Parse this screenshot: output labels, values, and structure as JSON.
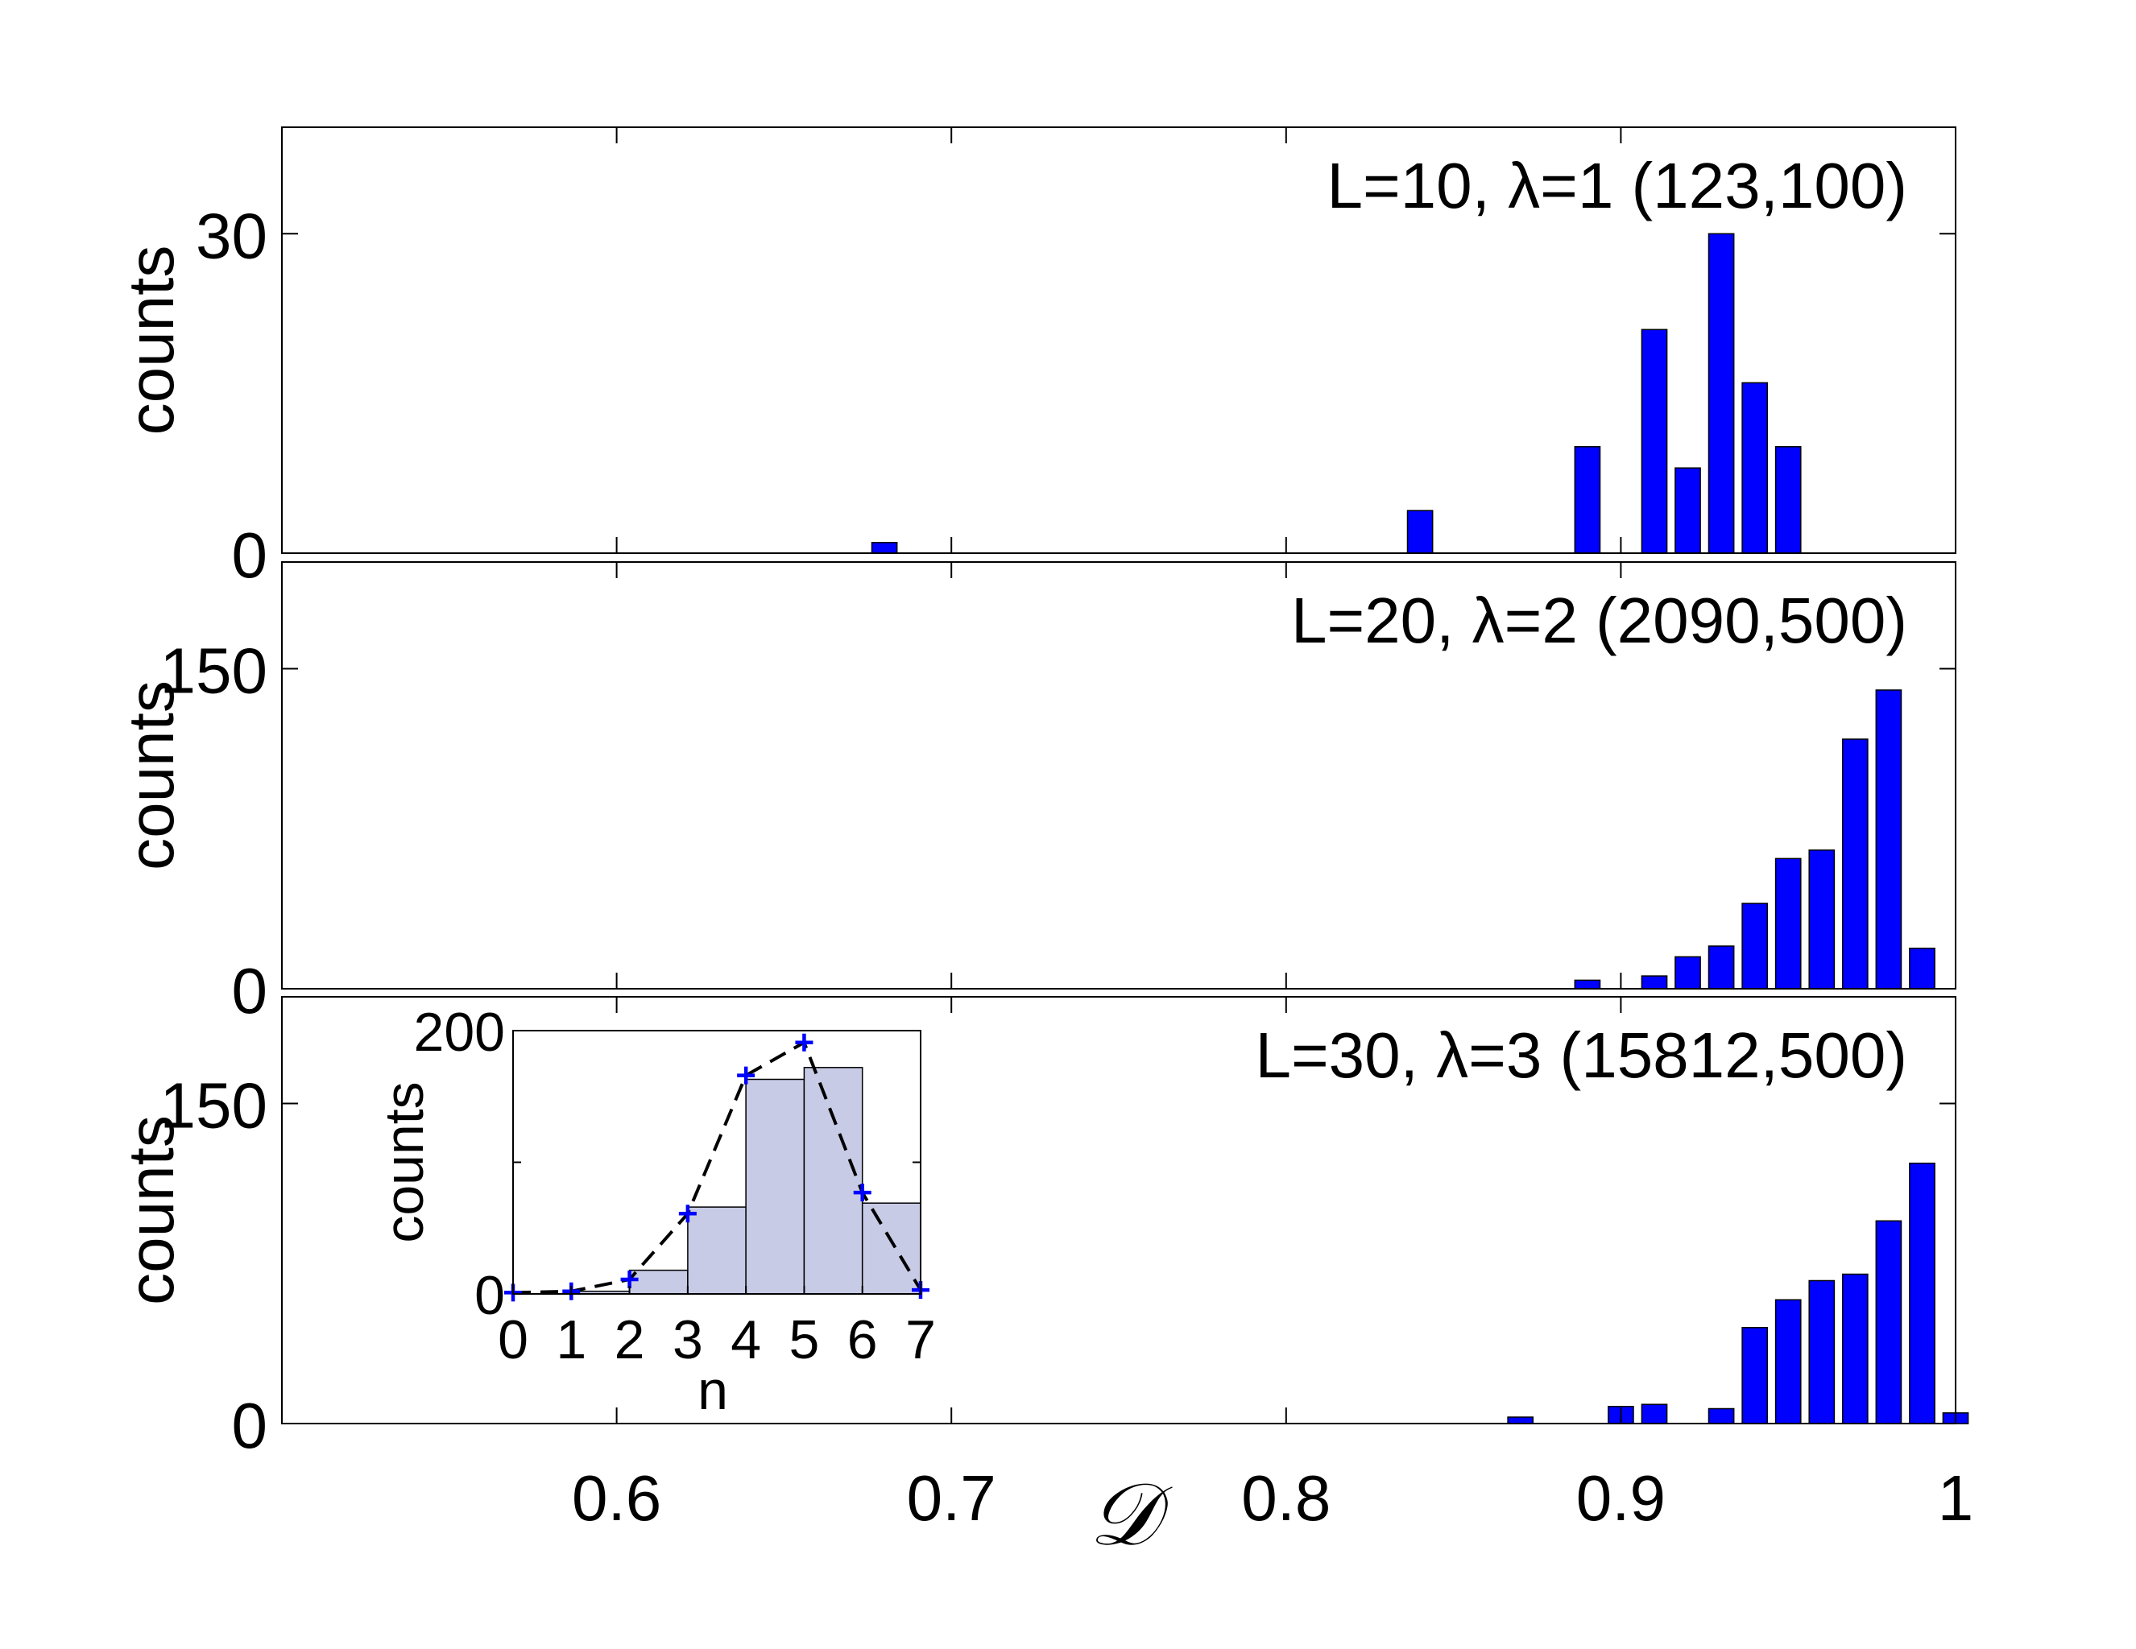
{
  "colors": {
    "bar_main": "#0000ff",
    "bar_inset": "#c8cbe6",
    "marker": "#0000ff",
    "curve": "#000000"
  },
  "xaxis_symbol": "𝒟",
  "chart_data": [
    {
      "type": "bar",
      "title": "L=10, λ=1 (123,100)",
      "ylabel": "counts",
      "xlabel": "",
      "xlim": [
        0.5,
        1.0
      ],
      "ylim": [
        0,
        40
      ],
      "yticks": [
        0,
        30
      ],
      "xticks": [
        0.6,
        0.7,
        0.8,
        0.9,
        1.0
      ],
      "show_xticklabels": false,
      "x": [
        0.68,
        0.84,
        0.89,
        0.91,
        0.92,
        0.93,
        0.94,
        0.95
      ],
      "values": [
        1,
        4,
        10,
        21,
        8,
        30,
        16,
        10
      ]
    },
    {
      "type": "bar",
      "title": "L=20, λ=2 (2090,500)",
      "ylabel": "counts",
      "xlabel": "",
      "xlim": [
        0.5,
        1.0
      ],
      "ylim": [
        0,
        200
      ],
      "yticks": [
        0,
        150
      ],
      "xticks": [
        0.6,
        0.7,
        0.8,
        0.9,
        1.0
      ],
      "show_xticklabels": false,
      "x": [
        0.89,
        0.91,
        0.92,
        0.93,
        0.94,
        0.95,
        0.96,
        0.97,
        0.98,
        0.99
      ],
      "values": [
        4,
        6,
        15,
        20,
        40,
        61,
        65,
        117,
        140,
        19
      ]
    },
    {
      "type": "bar",
      "title": "L=30, λ=3 (15812,500)",
      "ylabel": "counts",
      "xlabel": "𝒟",
      "xlim": [
        0.5,
        1.0
      ],
      "ylim": [
        0,
        200
      ],
      "yticks": [
        0,
        150
      ],
      "xticks": [
        0.6,
        0.7,
        0.8,
        0.9,
        1.0
      ],
      "show_xticklabels": true,
      "xticklabels": [
        "0.6",
        "0.7",
        "0.8",
        "0.9",
        "1"
      ],
      "x": [
        0.87,
        0.9,
        0.91,
        0.93,
        0.94,
        0.95,
        0.96,
        0.97,
        0.98,
        0.99,
        1.0
      ],
      "values": [
        3,
        8,
        9,
        7,
        45,
        58,
        67,
        70,
        95,
        122,
        5
      ]
    },
    {
      "type": "bar",
      "title": "",
      "ylabel": "counts",
      "xlabel": "n",
      "xlim": [
        0,
        7
      ],
      "ylim": [
        0,
        200
      ],
      "yticks": [
        0,
        200
      ],
      "xticks": [
        0,
        1,
        2,
        3,
        4,
        5,
        6,
        7
      ],
      "xticklabels": [
        "0",
        "1",
        "2",
        "3",
        "4",
        "5",
        "6",
        "7"
      ],
      "x": [
        1.5,
        2.5,
        3.5,
        4.5,
        5.5,
        6.5
      ],
      "values": [
        2,
        18,
        66,
        163,
        172,
        69
      ],
      "markers": {
        "x": [
          0,
          1,
          2,
          3,
          4,
          5,
          6,
          7
        ],
        "y": [
          1,
          2,
          11,
          61,
          166,
          191,
          77,
          3
        ]
      }
    }
  ]
}
